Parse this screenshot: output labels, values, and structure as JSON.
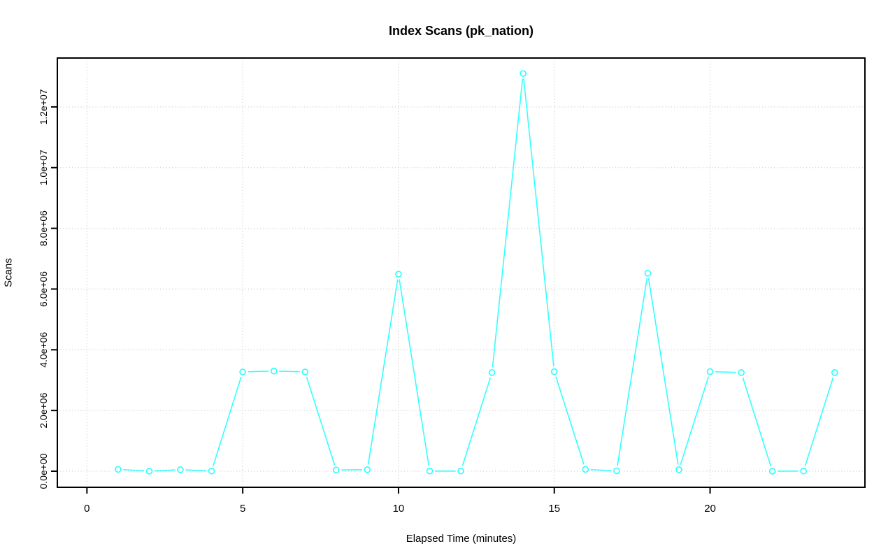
{
  "chart_data": {
    "type": "line",
    "title": "Index Scans (pk_nation)",
    "xlabel": "Elapsed Time (minutes)",
    "ylabel": "Scans",
    "x": [
      1,
      2,
      3,
      4,
      5,
      6,
      7,
      8,
      9,
      10,
      11,
      12,
      13,
      14,
      15,
      16,
      17,
      18,
      19,
      20,
      21,
      22,
      23,
      24
    ],
    "y": [
      60000,
      0,
      50000,
      5000,
      3270000,
      3300000,
      3270000,
      40000,
      50000,
      6490000,
      5000,
      5000,
      3250000,
      13100000,
      3280000,
      60000,
      10000,
      6520000,
      50000,
      3280000,
      3250000,
      0,
      5000,
      3250000
    ],
    "xlim": [
      -0.95,
      24.97
    ],
    "ylim": [
      -530000,
      13610000
    ],
    "x_ticks": [
      0,
      5,
      10,
      15,
      20
    ],
    "x_tick_labels": [
      "0",
      "5",
      "10",
      "15",
      "20"
    ],
    "y_ticks": [
      0,
      2000000,
      4000000,
      6000000,
      8000000,
      10000000,
      12000000
    ],
    "y_tick_labels": [
      "0.0e+00",
      "2.0e+06",
      "4.0e+06",
      "6.0e+06",
      "8.0e+06",
      "1.0e+07",
      "1.2e+07"
    ],
    "grid": true,
    "grid_style": "dotted",
    "legend": null,
    "marker": "open-circle",
    "line_style": "segments-with-point-gaps",
    "colors": {
      "line": "#00FFFF",
      "grid": "#D3D3D3",
      "axis": "#000000",
      "background": "#FFFFFF"
    }
  }
}
